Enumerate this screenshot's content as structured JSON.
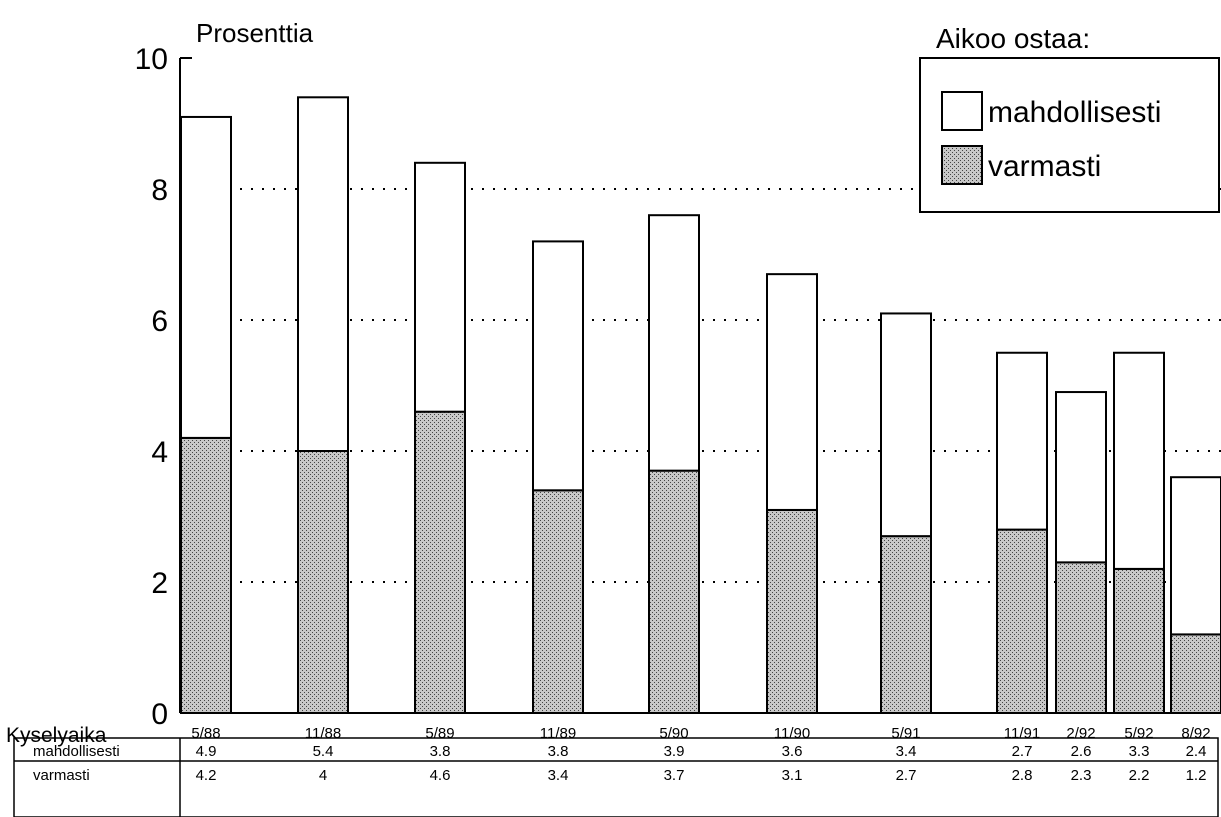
{
  "chart_data": {
    "type": "bar",
    "stacked": true,
    "ylabel": "Prosenttia",
    "xlabel": "Kyselyaika",
    "ylim": [
      0,
      10
    ],
    "yticks": [
      0,
      2,
      4,
      6,
      8,
      10
    ],
    "grid": "dotted horizontal lines",
    "legend_title": "Aikoo ostaa:",
    "legend_position": "top-right",
    "categories": [
      "5/88",
      "11/88",
      "5/89",
      "11/89",
      "5/90",
      "11/90",
      "5/91",
      "11/91",
      "2/92",
      "5/92",
      "8/92"
    ],
    "series": [
      {
        "name": "varmasti",
        "values": [
          4.2,
          4,
          4.6,
          3.4,
          3.7,
          3.1,
          2.7,
          2.8,
          2.3,
          2.2,
          1.2
        ],
        "fill": "stippled gray"
      },
      {
        "name": "mahdollisesti",
        "values": [
          4.9,
          5.4,
          3.8,
          3.8,
          3.9,
          3.6,
          3.4,
          2.7,
          2.6,
          3.3,
          2.4
        ],
        "fill": "white"
      }
    ],
    "table": {
      "rows": [
        {
          "label": "mahdollisesti",
          "values": [
            "4.9",
            "5.4",
            "3.8",
            "3.8",
            "3.9",
            "3.6",
            "3.4",
            "2.7",
            "2.6",
            "3.3",
            "2.4"
          ]
        },
        {
          "label": "varmasti",
          "values": [
            "4.2",
            "4",
            "4.6",
            "3.4",
            "3.7",
            "3.1",
            "2.7",
            "2.8",
            "2.3",
            "2.2",
            "1.2"
          ]
        }
      ]
    },
    "colors": {
      "outline": "#000000",
      "stipple": "#9a9a9a",
      "background": "#ffffff"
    }
  }
}
